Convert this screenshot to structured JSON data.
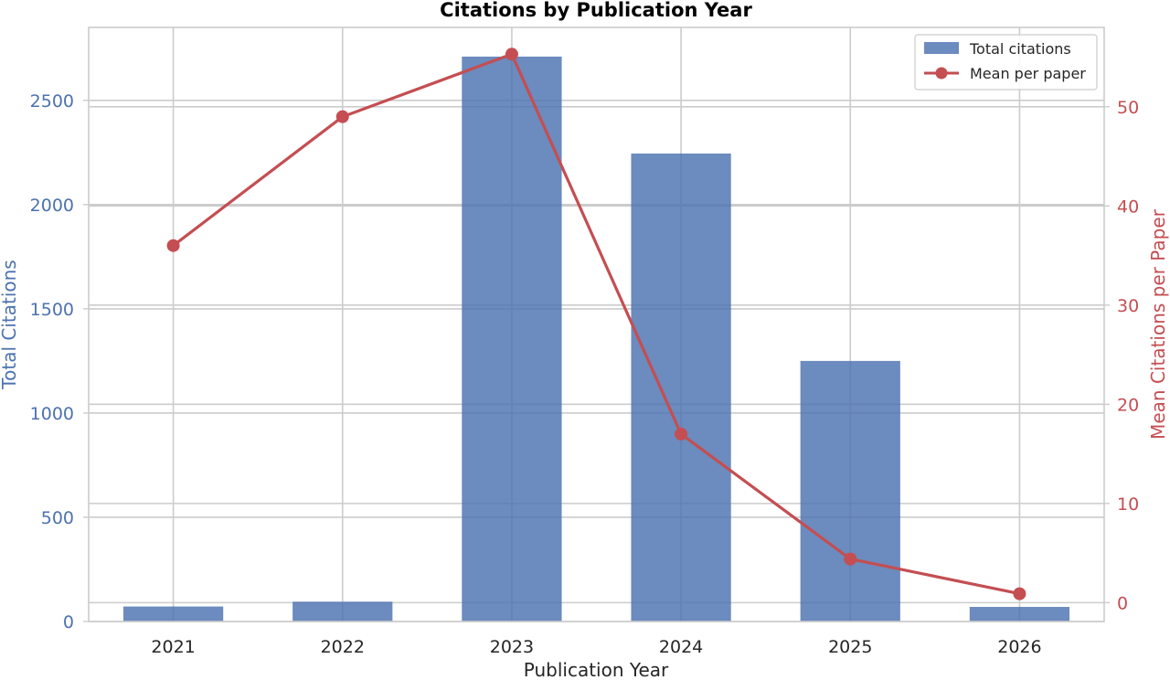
{
  "chart_data": {
    "type": "bar",
    "title": "Citations by Publication Year",
    "xlabel": "Publication Year",
    "ylabel_left": "Total Citations",
    "ylabel_right": "Mean Citations per Paper",
    "categories": [
      "2021",
      "2022",
      "2023",
      "2024",
      "2025",
      "2026"
    ],
    "ylim_left": [
      0,
      2850
    ],
    "ylim_right": [
      -1.9,
      58
    ],
    "yticks_left": [
      0,
      500,
      1000,
      1500,
      2000,
      2500
    ],
    "yticks_right": [
      0,
      10,
      20,
      30,
      40,
      50
    ],
    "series": [
      {
        "name": "Total citations",
        "type": "bar",
        "axis": "left",
        "color": "#4c72b0",
        "values": [
          72,
          95,
          2710,
          2245,
          1250,
          70
        ]
      },
      {
        "name": "Mean per paper",
        "type": "line",
        "axis": "right",
        "color": "#c44e52",
        "marker": "circle",
        "values": [
          36,
          49,
          55.3,
          17,
          4.4,
          0.9
        ]
      }
    ],
    "legend": "top-right",
    "grid": true,
    "colors": {
      "left_axis": "#4c72b0",
      "right_axis": "#c44e52",
      "text": "#262626",
      "grid": "#cccccc"
    }
  }
}
